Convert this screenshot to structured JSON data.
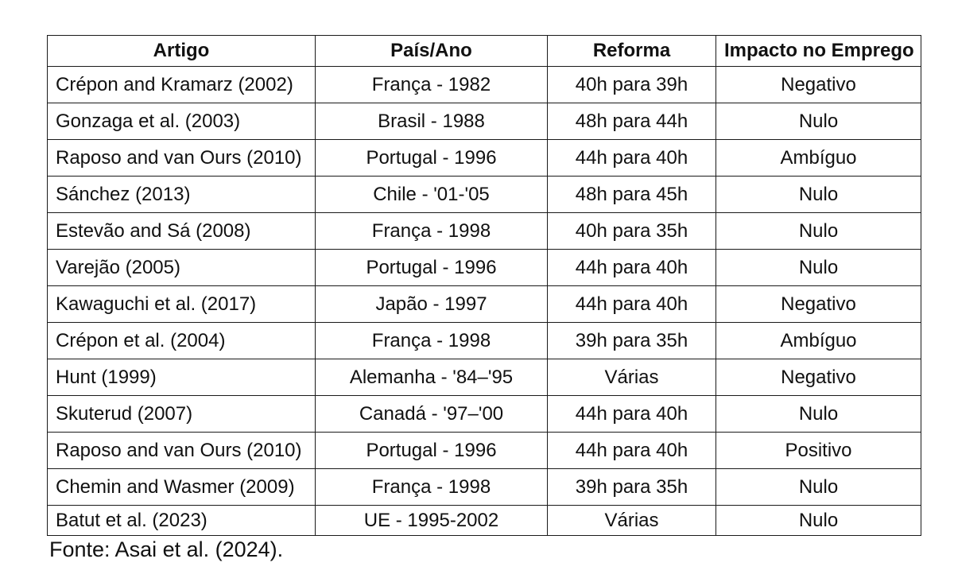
{
  "table": {
    "headers": [
      "Artigo",
      "País/Ano",
      "Reforma",
      "Impacto no Emprego"
    ],
    "rows": [
      [
        "Crépon and Kramarz (2002)",
        "França - 1982",
        "40h para 39h",
        "Negativo"
      ],
      [
        "Gonzaga et al. (2003)",
        "Brasil - 1988",
        "48h para 44h",
        "Nulo"
      ],
      [
        "Raposo and van Ours (2010)",
        "Portugal - 1996",
        "44h para 40h",
        "Ambíguo"
      ],
      [
        "Sánchez (2013)",
        "Chile - '01-'05",
        "48h para 45h",
        "Nulo"
      ],
      [
        "Estevão and Sá (2008)",
        "França - 1998",
        "40h para 35h",
        "Nulo"
      ],
      [
        "Varejão (2005)",
        "Portugal - 1996",
        "44h para 40h",
        "Nulo"
      ],
      [
        "Kawaguchi et al. (2017)",
        "Japão - 1997",
        "44h para 40h",
        "Negativo"
      ],
      [
        "Crépon et al. (2004)",
        "França - 1998",
        "39h para 35h",
        "Ambíguo"
      ],
      [
        "Hunt (1999)",
        "Alemanha - '84–'95",
        "Várias",
        "Negativo"
      ],
      [
        "Skuterud (2007)",
        "Canadá - '97–'00",
        "44h para 40h",
        "Nulo"
      ],
      [
        "Raposo and van Ours (2010)",
        "Portugal - 1996",
        "44h para 40h",
        "Positivo"
      ],
      [
        "Chemin and Wasmer (2009)",
        "França - 1998",
        "39h para 35h",
        "Nulo"
      ],
      [
        "Batut et al. (2023)",
        "UE - 1995-2002",
        "Várias",
        "Nulo"
      ]
    ]
  },
  "source": "Fonte: Asai et al. (2024)."
}
